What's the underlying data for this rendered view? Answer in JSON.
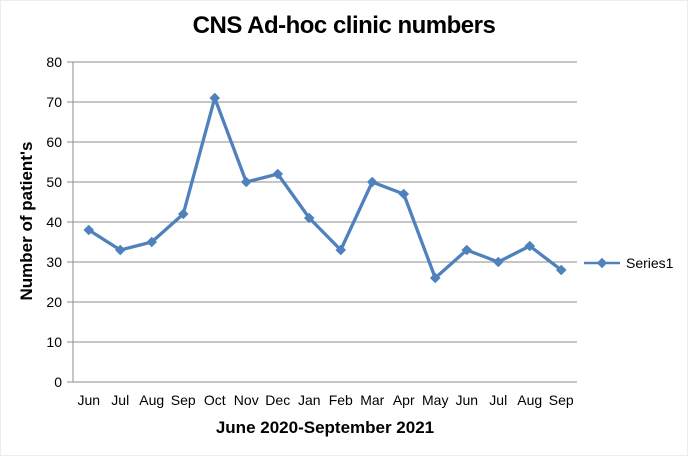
{
  "chart_data": {
    "type": "line",
    "title": "CNS Ad-hoc clinic numbers",
    "xlabel": "June 2020-September 2021",
    "ylabel": "Number of patient's",
    "categories": [
      "Jun",
      "Jul",
      "Aug",
      "Sep",
      "Oct",
      "Nov",
      "Dec",
      "Jan",
      "Feb",
      "Mar",
      "Apr",
      "May",
      "Jun",
      "Jul",
      "Aug",
      "Sep"
    ],
    "series": [
      {
        "name": "Series1",
        "values": [
          38,
          33,
          35,
          42,
          71,
          50,
          52,
          41,
          33,
          50,
          47,
          26,
          33,
          30,
          34,
          28
        ],
        "color": "#4F81BD",
        "marker": "diamond"
      }
    ],
    "ylim": [
      0,
      80
    ],
    "yticks": [
      0,
      10,
      20,
      30,
      40,
      50,
      60,
      70,
      80
    ],
    "grid": true,
    "legend_position": "right",
    "legend_entries": [
      "Series1"
    ]
  },
  "colors": {
    "series_line": "#4F81BD",
    "gridline": "#8C8C8C",
    "axis_line": "#8C8C8C",
    "text": "#000000",
    "background": "#FFFFFF"
  }
}
